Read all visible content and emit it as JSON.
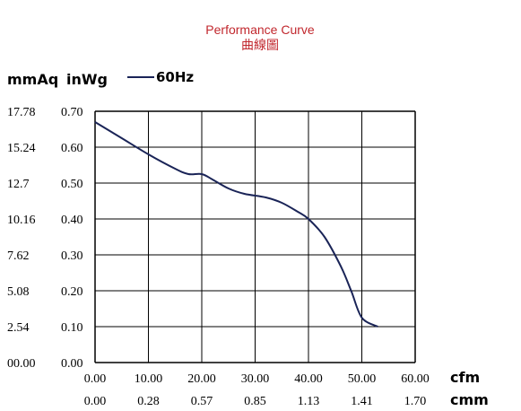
{
  "chart_data": {
    "type": "line",
    "title": "Performance Curve",
    "subtitle": "曲線圖",
    "ylabel_left": "mmAq",
    "ylabel_right": "inWg",
    "xlabel_top": "cfm",
    "xlabel_bottom": "cmm",
    "x_ticks_cfm": [
      "0.00",
      "10.00",
      "20.00",
      "30.00",
      "40.00",
      "50.00",
      "60.00"
    ],
    "x_ticks_cmm": [
      "0.00",
      "0.28",
      "0.57",
      "0.85",
      "1.13",
      "1.41",
      "1.70"
    ],
    "y_ticks_inwg": [
      "0.00",
      "0.10",
      "0.20",
      "0.30",
      "0.40",
      "0.50",
      "0.60",
      "0.70"
    ],
    "y_ticks_mmaq": [
      "00.00",
      "2.54",
      "5.08",
      "7.62",
      "10.16",
      "12.7",
      "15.24",
      "17.78"
    ],
    "xlim": [
      0,
      60
    ],
    "ylim": [
      0,
      0.7
    ],
    "grid": true,
    "legend_position": "top-left",
    "series": [
      {
        "name": "60Hz",
        "color": "#1a2457",
        "x": [
          0,
          5,
          10,
          15,
          17.5,
          20,
          22,
          25,
          28,
          32,
          35,
          38,
          40,
          43,
          46,
          48,
          50,
          53
        ],
        "y": [
          0.67,
          0.625,
          0.58,
          0.54,
          0.525,
          0.525,
          0.51,
          0.485,
          0.47,
          0.46,
          0.445,
          0.42,
          0.4,
          0.35,
          0.27,
          0.2,
          0.125,
          0.1
        ]
      }
    ]
  }
}
